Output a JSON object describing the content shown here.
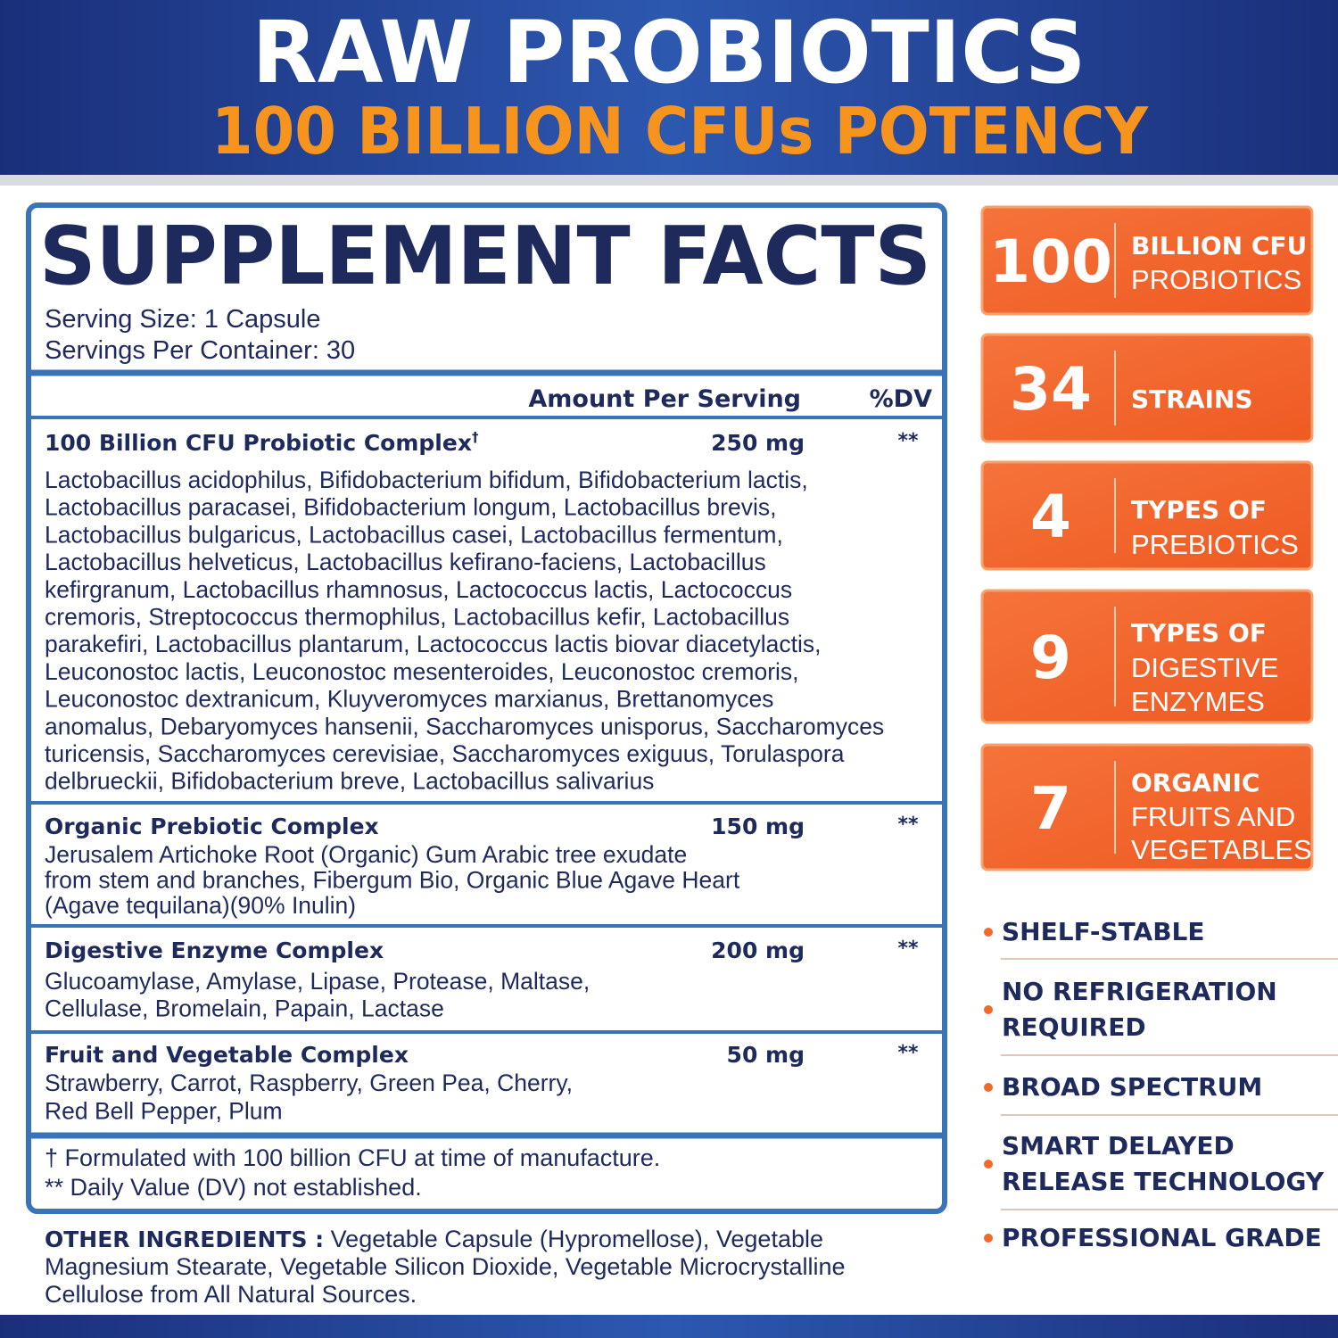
{
  "header": {
    "title": "RAW PROBIOTICS",
    "subtitle": "100 BILLION CFUs POTENCY"
  },
  "facts": {
    "title": "SUPPLEMENT FACTS",
    "serving_size": "Serving Size: 1 Capsule",
    "servings_per_container": "Servings Per Container: 30",
    "columns": [
      "Amount Per Serving",
      "%DV"
    ],
    "rows": [
      {
        "name": "100 Billion CFU Probiotic Complex",
        "mark": "†",
        "amount": "250 mg",
        "dv": "**",
        "lines": [
          "Lactobacillus acidophilus, Bifidobacterium bifidum, Bifidobacterium lactis,",
          "Lactobacillus paracasei, Bifidobacterium longum, Lactobacillus brevis,",
          "Lactobacillus bulgaricus, Lactobacillus casei, Lactobacillus fermentum,",
          "Lactobacillus helveticus, Lactobacillus kefirano-faciens, Lactobacillus",
          "kefirgranum, Lactobacillus rhamnosus, Lactococcus lactis, Lactococcus",
          "cremoris, Streptococcus thermophilus, Lactobacillus kefir, Lactobacillus",
          "parakefiri, Lactobacillus plantarum, Lactococcus lactis biovar diacetylactis,",
          "Leuconostoc lactis, Leuconostoc mesenteroides, Leuconostoc cremoris,",
          "Leuconostoc dextranicum, Kluyveromyces marxianus, Brettanomyces",
          "anomalus, Debaryomyces hansenii, Saccharomyces unisporus, Saccharomyces",
          "turicensis, Saccharomyces cerevisiae, Saccharomyces exiguus, Torulaspora",
          "delbrueckii, Bifidobacterium breve, Lactobacillus salivarius"
        ]
      },
      {
        "name": "Organic Prebiotic Complex",
        "amount": "150 mg",
        "dv": "**",
        "lines": [
          "Jerusalem Artichoke Root (Organic) Gum Arabic tree exudate",
          "from stem and branches, Fibergum Bio, Organic Blue Agave Heart",
          "(Agave tequilana)(90% Inulin)"
        ]
      },
      {
        "name": "Digestive Enzyme Complex",
        "amount": "200 mg",
        "dv": "**",
        "lines": [
          "Glucoamylase, Amylase, Lipase, Protease, Maltase,",
          "Cellulase, Bromelain, Papain, Lactase"
        ]
      },
      {
        "name": "Fruit and Vegetable Complex",
        "amount": "50 mg",
        "dv": "**",
        "lines": [
          "Strawberry, Carrot, Raspberry, Green Pea, Cherry,",
          "Red Bell Pepper, Plum"
        ]
      }
    ],
    "footnotes": [
      "† Formulated with 100 billion CFU at time of manufacture.",
      "** Daily Value (DV) not established."
    ]
  },
  "other_ingredients": {
    "label": "OTHER INGREDIENTS :",
    "lines": [
      " Vegetable Capsule (Hypromellose), Vegetable",
      "Magnesium Stearate, Vegetable Silicon Dioxide, Vegetable Microcrystalline",
      "Cellulose from All Natural Sources."
    ]
  },
  "badges": [
    {
      "number": "100",
      "heading": "BILLION CFU",
      "lines": [
        "PROBIOTICS"
      ]
    },
    {
      "number": "34",
      "heading": "STRAINS",
      "lines": []
    },
    {
      "number": "4",
      "heading": "TYPES OF",
      "lines": [
        "PREBIOTICS"
      ]
    },
    {
      "number": "9",
      "heading": "TYPES OF",
      "lines": [
        "DIGESTIVE",
        "ENZYMES"
      ]
    },
    {
      "number": "7",
      "heading": "ORGANIC",
      "lines": [
        "FRUITS AND",
        "VEGETABLES"
      ]
    }
  ],
  "features": [
    {
      "lines": [
        "SHELF-STABLE"
      ]
    },
    {
      "lines": [
        "NO REFRIGERATION",
        "REQUIRED"
      ]
    },
    {
      "lines": [
        "BROAD SPECTRUM"
      ]
    },
    {
      "lines": [
        "SMART DELAYED",
        "RELEASE TECHNOLOGY"
      ]
    },
    {
      "lines": [
        "PROFESSIONAL GRADE"
      ]
    }
  ]
}
